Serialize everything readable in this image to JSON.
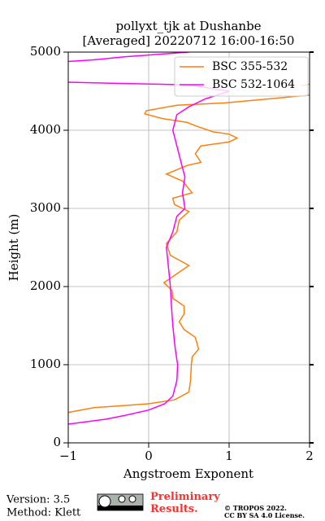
{
  "chart_data": {
    "type": "line",
    "title": "pollyxt_tjk at Dushanbe",
    "subtitle": "[Averaged] 20220712 16:00-16:50",
    "x_label": "Angstroem Exponent",
    "y_label": "Height (m)",
    "xlim": [
      -1,
      2
    ],
    "xticks": [
      {
        "value": -1,
        "label": "−1"
      },
      0,
      1,
      2
    ],
    "ylim": [
      0,
      5000
    ],
    "yticks": [
      0,
      1000,
      2000,
      3000,
      4000,
      5000
    ],
    "grid": true,
    "legend": "upper right",
    "series": [
      {
        "name": "BSC 355-532",
        "color": "#ff7f0e",
        "heights": [
          390,
          450,
          500,
          550,
          650,
          800,
          1000,
          1100,
          1200,
          1350,
          1450,
          1550,
          1650,
          1750,
          1850,
          1950,
          2050,
          2270,
          2400,
          2550,
          2700,
          2850,
          2960,
          3050,
          3130,
          3200,
          3350,
          3440,
          3550,
          3590,
          3700,
          3800,
          3850,
          3900,
          3950,
          3980,
          4050,
          4100,
          4150,
          4210,
          4250,
          4320,
          4350,
          4400,
          4450,
          null,
          4570,
          4590
        ],
        "values": [
          -1.0,
          -0.68,
          0.0,
          0.32,
          0.5,
          0.52,
          0.53,
          0.54,
          0.62,
          0.58,
          0.44,
          0.38,
          0.44,
          0.44,
          0.3,
          0.29,
          0.19,
          0.5,
          0.27,
          0.22,
          0.35,
          0.38,
          0.5,
          0.32,
          0.3,
          0.54,
          0.42,
          0.22,
          0.48,
          0.65,
          0.58,
          0.65,
          1.0,
          1.1,
          1.0,
          0.8,
          0.6,
          0.48,
          0.17,
          -0.05,
          -0.03,
          0.35,
          0.95,
          1.48,
          2.0,
          null,
          1.9,
          2.0
        ]
      },
      {
        "name": "BSC 532-1064",
        "color": "#ff00ff",
        "heights": [
          240,
          300,
          350,
          420,
          500,
          600,
          800,
          1000,
          1200,
          1500,
          1800,
          2000,
          2200,
          2500,
          2700,
          2900,
          3000,
          3200,
          3400,
          3600,
          3800,
          4000,
          4200,
          4300,
          4400,
          4500,
          4580,
          4615,
          null,
          4880,
          4900,
          4940,
          5000
        ],
        "values": [
          -1.0,
          -0.55,
          -0.3,
          0.0,
          0.2,
          0.3,
          0.35,
          0.36,
          0.33,
          0.3,
          0.28,
          0.27,
          0.25,
          0.22,
          0.3,
          0.35,
          0.45,
          0.42,
          0.45,
          0.4,
          0.35,
          0.3,
          0.35,
          0.5,
          0.7,
          1.0,
          0.5,
          -1.0,
          null,
          -1.0,
          -0.7,
          -0.3,
          0.5
        ]
      }
    ]
  },
  "footer": {
    "version": "Version: 3.5",
    "method": "Method: Klett",
    "status": "Preliminary Results.",
    "copyright": "© TROPOS 2022.",
    "license": "CC BY SA 4.0 License."
  }
}
